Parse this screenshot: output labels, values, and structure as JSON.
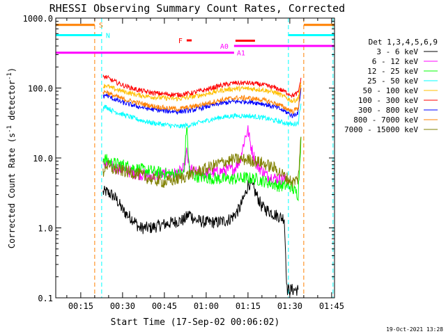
{
  "chart_data": {
    "type": "line",
    "title": "RHESSI Observing Summary Count Rates, Corrected",
    "xlabel": "Start Time (17-Sep-02 00:06:02)",
    "ylabel": "Corrected Count Rate (s",
    "ylabel_sup": "-1",
    "ylabel_mid": " detector",
    "ylabel_sup2": "-1",
    "ylabel_end": ")",
    "x_unit": "minutes since 00:00",
    "xlim": [
      6.03,
      106.03
    ],
    "ylim": [
      0.1,
      1000
    ],
    "yscale": "log",
    "x_ticks": [
      {
        "value": 15,
        "label": "00:15"
      },
      {
        "value": 30,
        "label": "00:30"
      },
      {
        "value": 45,
        "label": "00:45"
      },
      {
        "value": 60,
        "label": "01:00"
      },
      {
        "value": 75,
        "label": "01:15"
      },
      {
        "value": 90,
        "label": "01:30"
      },
      {
        "value": 105,
        "label": "01:45"
      }
    ],
    "y_ticks": [
      {
        "value": 0.1,
        "label": "0.1"
      },
      {
        "value": 1,
        "label": "1.0"
      },
      {
        "value": 10,
        "label": "10.0"
      },
      {
        "value": 100,
        "label": "100.0"
      },
      {
        "value": 1000,
        "label": "1000.0"
      }
    ],
    "legend_title": "Det 1,3,4,5,6,9",
    "legend_position": "right",
    "series": [
      {
        "name": "3 - 6 keV",
        "color": "#000000",
        "x": [
          23,
          24,
          26,
          28,
          30,
          32,
          34,
          36,
          40,
          44,
          48,
          52,
          54,
          56,
          60,
          64,
          68,
          70,
          72,
          74,
          75,
          76,
          78,
          80,
          84,
          87,
          88,
          89,
          92,
          93
        ],
        "y": [
          3.2,
          3.3,
          3.0,
          2.5,
          1.8,
          1.5,
          1.3,
          1.0,
          1.0,
          1.1,
          1.2,
          1.3,
          1.6,
          1.3,
          1.2,
          1.2,
          1.3,
          1.5,
          1.9,
          3.0,
          4.2,
          4.3,
          3.0,
          2.0,
          1.6,
          1.4,
          1.4,
          0.13,
          0.13,
          0.13
        ]
      },
      {
        "name": "6 - 12 keV",
        "color": "#ff00ff",
        "x": [
          23,
          26,
          30,
          35,
          40,
          45,
          50,
          52,
          53,
          54,
          56,
          60,
          66,
          70,
          72,
          74,
          75,
          76,
          78,
          82,
          86,
          88,
          89
        ],
        "y": [
          8.5,
          7.5,
          6.8,
          6.0,
          5.5,
          5.8,
          6.0,
          7.0,
          12.0,
          7.0,
          6.2,
          6.0,
          6.5,
          7.0,
          9.0,
          20.0,
          25.0,
          15.0,
          8.0,
          5.5,
          5.0,
          5.0,
          4.8
        ]
      },
      {
        "name": "12 - 25 keV",
        "color": "#00ff00",
        "x": [
          23,
          26,
          30,
          35,
          40,
          45,
          50,
          52,
          53,
          54,
          56,
          60,
          66,
          70,
          74,
          78,
          82,
          86,
          88,
          90,
          93,
          94
        ],
        "y": [
          10.0,
          8.5,
          8.0,
          7.0,
          6.5,
          6.0,
          5.8,
          6.0,
          30.0,
          6.0,
          5.5,
          5.2,
          5.0,
          5.0,
          5.2,
          5.0,
          4.5,
          4.0,
          4.0,
          4.0,
          3.0,
          20.0
        ]
      },
      {
        "name": "25 - 50 keV",
        "color": "#00ffff",
        "x": [
          23,
          24,
          26,
          30,
          35,
          40,
          45,
          50,
          55,
          60,
          65,
          70,
          75,
          80,
          85,
          88,
          91,
          93,
          94
        ],
        "y": [
          50,
          55,
          48,
          42,
          36,
          32,
          30,
          28,
          30,
          34,
          38,
          40,
          40,
          38,
          34,
          32,
          30,
          32,
          60
        ]
      },
      {
        "name": "50 - 100 keV",
        "color": "#ffbf00",
        "x": [
          23,
          24,
          26,
          30,
          35,
          40,
          45,
          50,
          55,
          60,
          65,
          70,
          75,
          80,
          85,
          88,
          91,
          93,
          94
        ],
        "y": [
          105,
          110,
          100,
          90,
          80,
          75,
          72,
          70,
          75,
          82,
          92,
          98,
          98,
          95,
          86,
          75,
          65,
          70,
          120
        ]
      },
      {
        "name": "100 - 300 keV",
        "color": "#ff0000",
        "x": [
          23,
          24,
          26,
          30,
          35,
          40,
          45,
          50,
          55,
          60,
          65,
          70,
          75,
          80,
          85,
          88,
          91,
          93,
          94
        ],
        "y": [
          140,
          145,
          130,
          110,
          95,
          86,
          82,
          80,
          85,
          95,
          108,
          118,
          118,
          112,
          100,
          90,
          78,
          85,
          140
        ]
      },
      {
        "name": "300 - 800 keV",
        "color": "#0000ff",
        "x": [
          23,
          24,
          26,
          30,
          35,
          40,
          45,
          50,
          55,
          60,
          65,
          70,
          75,
          80,
          85,
          88,
          91,
          93,
          94
        ],
        "y": [
          75,
          80,
          72,
          62,
          55,
          50,
          47,
          46,
          48,
          54,
          60,
          64,
          64,
          60,
          53,
          47,
          40,
          45,
          100
        ]
      },
      {
        "name": "800 - 7000 keV",
        "color": "#ff8000",
        "x": [
          23,
          24,
          26,
          30,
          35,
          40,
          45,
          50,
          55,
          60,
          65,
          70,
          75,
          80,
          85,
          88,
          91,
          93,
          94
        ],
        "y": [
          85,
          90,
          80,
          70,
          62,
          56,
          52,
          50,
          54,
          60,
          67,
          72,
          72,
          68,
          60,
          53,
          46,
          52,
          110
        ]
      },
      {
        "name": "7000 - 15000 keV",
        "color": "#808000",
        "x": [
          23,
          24,
          26,
          30,
          35,
          40,
          45,
          50,
          55,
          60,
          65,
          70,
          75,
          80,
          85,
          88,
          91,
          93,
          94
        ],
        "y": [
          6.0,
          8.0,
          7.0,
          6.5,
          6.0,
          5.0,
          4.5,
          5.0,
          6.0,
          7.0,
          8.5,
          9.5,
          9.5,
          8.5,
          7.0,
          5.5,
          4.5,
          5.0,
          20.0
        ]
      }
    ],
    "flag_bars": [
      {
        "label": "S",
        "color": "#ff8000",
        "segments": [
          [
            6.03,
            20
          ],
          [
            95,
            106.03
          ]
        ],
        "y": 800
      },
      {
        "label": "N",
        "color": "#00ffff",
        "segments": [
          [
            6.03,
            22.5
          ],
          [
            89.5,
            106.03
          ]
        ],
        "y": 570
      },
      {
        "label": "F",
        "color": "#ff0000",
        "segments": [
          [
            53,
            54.8
          ]
        ],
        "y": 480
      },
      {
        "label": "",
        "color": "#ff0000",
        "segments": [
          [
            70.5,
            77.5
          ]
        ],
        "y": 475
      },
      {
        "label": "A0",
        "color": "#ff00ff",
        "segments": [
          [
            70,
            106.03
          ]
        ],
        "y": 400
      },
      {
        "label": "A1",
        "color": "#ff00ff",
        "segments": [
          [
            6.03,
            70
          ]
        ],
        "y": 320
      }
    ],
    "vertical_lines": [
      {
        "x": 20,
        "color": "#ff8000"
      },
      {
        "x": 22.5,
        "color": "#00ffff"
      },
      {
        "x": 89.5,
        "color": "#00ffff"
      },
      {
        "x": 95,
        "color": "#ff8000"
      },
      {
        "x": 105.5,
        "color": "#00ffff"
      }
    ],
    "grid": false
  },
  "footer_date": "19-Oct-2021 13:28"
}
